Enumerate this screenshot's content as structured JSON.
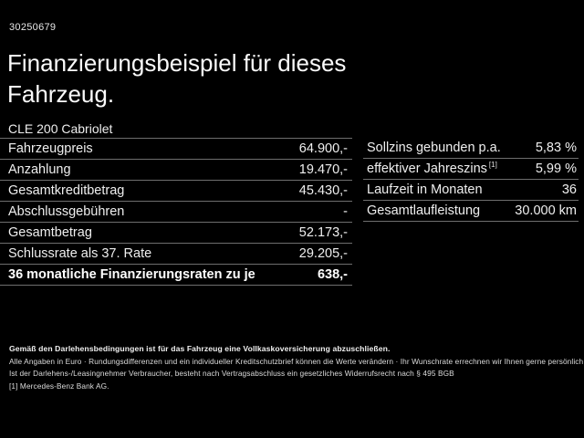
{
  "document_id": "30250679",
  "title": "Finanzierungsbeispiel für dieses Fahrzeug.",
  "vehicle_model": "CLE 200 Cabriolet",
  "financing_table": {
    "rows": [
      {
        "label": "Fahrzeugpreis",
        "value": "64.900,-"
      },
      {
        "label": "Anzahlung",
        "value": "19.470,-"
      },
      {
        "label": "Gesamtkreditbetrag",
        "value": "45.430,-"
      },
      {
        "label": "Abschlussgebühren",
        "value": "-"
      },
      {
        "label": "Gesamtbetrag",
        "value": "52.173,-"
      },
      {
        "label": "Schlussrate als 37. Rate",
        "value": "29.205,-"
      },
      {
        "label": "36 monatliche Finanzierungsraten zu je",
        "value": "638,-"
      }
    ]
  },
  "conditions_table": {
    "rows": [
      {
        "label": "Sollzins gebunden p.a.",
        "footnote_marker": "",
        "value": "5,83 %"
      },
      {
        "label": "effektiver Jahreszins",
        "footnote_marker": "[1]",
        "value": "5,99 %"
      },
      {
        "label": "Laufzeit in Monaten",
        "footnote_marker": "",
        "value": "36"
      },
      {
        "label": "Gesamtlaufleistung",
        "footnote_marker": "",
        "value": "30.000 km"
      }
    ]
  },
  "footer": {
    "insurance_note": "Gemäß den Darlehensbedingungen ist für das Fahrzeug eine Vollkaskoversicherung abzuschließen.",
    "disclaimer_1": "Alle Angaben in Euro · Rundungsdifferenzen und ein individueller Kreditschutzbrief können die Werte verändern · Ihr Wunschrate errechnen wir Ihnen gerne persönlich",
    "disclaimer_2": "Ist der Darlehens-/Leasingnehmer Verbraucher, besteht nach Vertragsabschluss ein gesetzliches Widerrufsrecht nach § 495 BGB",
    "footnote_1": "[1] Mercedes-Benz Bank AG."
  },
  "colors": {
    "background": "#000000",
    "text": "#f2f2f2",
    "divider": "#6e6e6e"
  }
}
